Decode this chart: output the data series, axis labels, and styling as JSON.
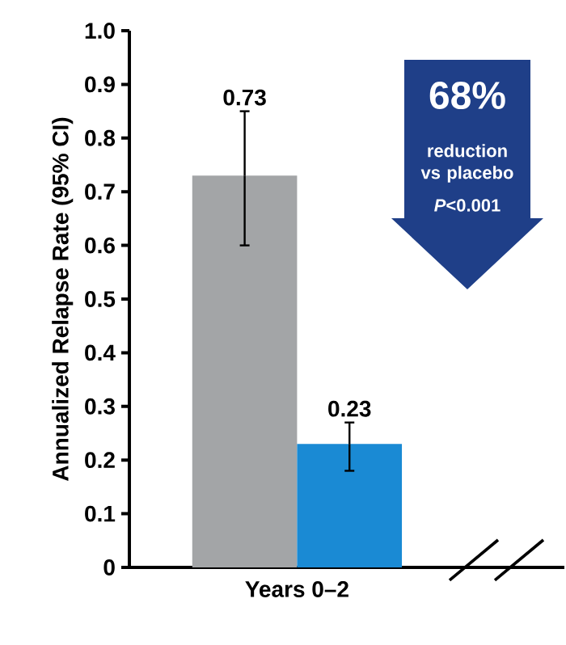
{
  "chart_data": {
    "type": "bar",
    "ylabel": "Annualized Relapse Rate (95% CI)",
    "categories": [
      "Years 0–2"
    ],
    "series": [
      {
        "color": "#a3a5a7",
        "values": [
          0.73
        ],
        "errors": [
          [
            0.6,
            0.85
          ]
        ],
        "value_labels": [
          "0.73"
        ]
      },
      {
        "color": "#1a8ad4",
        "values": [
          0.23
        ],
        "errors": [
          [
            0.18,
            0.27
          ]
        ],
        "value_labels": [
          "0.23"
        ]
      }
    ],
    "ylim": [
      0,
      1.0
    ],
    "yticks": [
      0,
      {
        "value": 0.1,
        "label": "0.1"
      },
      {
        "value": 0.2,
        "label": "0.2"
      },
      {
        "value": 0.3,
        "label": "0.3"
      },
      {
        "value": 0.4,
        "label": "0.4"
      },
      {
        "value": 0.5,
        "label": "0.5"
      },
      {
        "value": 0.6,
        "label": "0.6"
      },
      {
        "value": 0.7,
        "label": "0.7"
      },
      {
        "value": 0.8,
        "label": "0.8"
      },
      {
        "value": 0.9,
        "label": "0.9"
      },
      {
        "value": 1.0,
        "label": "1.0"
      }
    ],
    "annotations": [
      "68%",
      "reduction vs placebo",
      "*P*<0.001"
    ]
  }
}
